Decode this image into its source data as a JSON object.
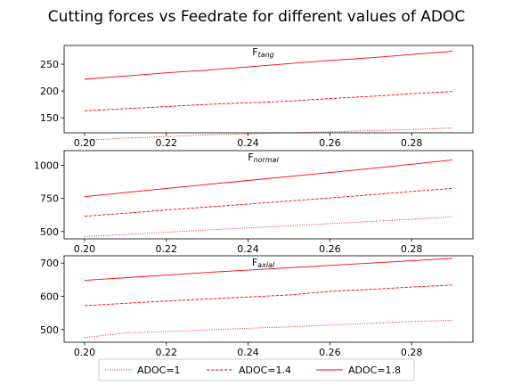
{
  "figure_title": "Cutting forces vs Feedrate for different values of ADOC",
  "colors": {
    "series": "#ff0000",
    "axes": "#000000",
    "background": "#ffffff"
  },
  "legend": {
    "placement": "lower-center",
    "entries": [
      {
        "label": "ADOC=1",
        "style": "dotted"
      },
      {
        "label": "ADOC=1.4",
        "style": "dashed"
      },
      {
        "label": "ADOC=1.8",
        "style": "solid"
      }
    ]
  },
  "chart_data": [
    {
      "type": "line",
      "title": "F",
      "title_sub": "tang",
      "xlabel": "",
      "ylabel": "",
      "xlim": [
        0.195,
        0.295
      ],
      "ylim": [
        122,
        285
      ],
      "xticks": [
        "0.20",
        "0.22",
        "0.24",
        "0.26",
        "0.28"
      ],
      "yticks": [
        "150",
        "200",
        "250"
      ],
      "x": [
        0.2,
        0.21,
        0.22,
        0.23,
        0.24,
        0.25,
        0.26,
        0.27,
        0.28,
        0.29
      ],
      "series": [
        {
          "name": "ADOC=1",
          "style": "dotted",
          "values": [
            108,
            112,
            115,
            118,
            120,
            122,
            124,
            126,
            128,
            131
          ]
        },
        {
          "name": "ADOC=1.4",
          "style": "dashed",
          "values": [
            163,
            167,
            171,
            175,
            178,
            181,
            186,
            190,
            195,
            199
          ]
        },
        {
          "name": "ADOC=1.8",
          "style": "solid",
          "values": [
            222,
            228,
            234,
            239,
            245,
            251,
            257,
            262,
            268,
            274
          ]
        }
      ]
    },
    {
      "type": "line",
      "title": "F",
      "title_sub": "normal",
      "xlabel": "",
      "ylabel": "",
      "xlim": [
        0.195,
        0.295
      ],
      "ylim": [
        445,
        1110
      ],
      "xticks": [
        "0.20",
        "0.22",
        "0.24",
        "0.26",
        "0.28"
      ],
      "yticks": [
        "500",
        "750",
        "1000"
      ],
      "x": [
        0.2,
        0.21,
        0.22,
        0.23,
        0.24,
        0.25,
        0.26,
        0.27,
        0.28,
        0.29
      ],
      "series": [
        {
          "name": "ADOC=1",
          "style": "dotted",
          "values": [
            462,
            478,
            495,
            512,
            527,
            543,
            560,
            576,
            593,
            610
          ]
        },
        {
          "name": "ADOC=1.4",
          "style": "dashed",
          "values": [
            615,
            638,
            662,
            685,
            707,
            730,
            753,
            777,
            802,
            825
          ]
        },
        {
          "name": "ADOC=1.8",
          "style": "solid",
          "values": [
            763,
            794,
            825,
            855,
            885,
            915,
            945,
            975,
            1007,
            1040
          ]
        }
      ]
    },
    {
      "type": "line",
      "title": "F",
      "title_sub": "axial",
      "xlabel": "",
      "ylabel": "",
      "xlim": [
        0.195,
        0.295
      ],
      "ylim": [
        462,
        722
      ],
      "xticks": [
        "0.20",
        "0.22",
        "0.24",
        "0.26",
        "0.28"
      ],
      "yticks": [
        "500",
        "600",
        "700"
      ],
      "x": [
        0.2,
        0.21,
        0.22,
        0.23,
        0.24,
        0.25,
        0.26,
        0.27,
        0.28,
        0.29
      ],
      "series": [
        {
          "name": "ADOC=1",
          "style": "dotted",
          "values": [
            476,
            490,
            494,
            499,
            504,
            508,
            514,
            519,
            524,
            528
          ]
        },
        {
          "name": "ADOC=1.4",
          "style": "dashed",
          "values": [
            572,
            579,
            586,
            592,
            598,
            604,
            615,
            621,
            628,
            634
          ]
        },
        {
          "name": "ADOC=1.8",
          "style": "solid",
          "values": [
            648,
            656,
            664,
            672,
            679,
            686,
            693,
            700,
            707,
            714
          ]
        }
      ]
    }
  ]
}
